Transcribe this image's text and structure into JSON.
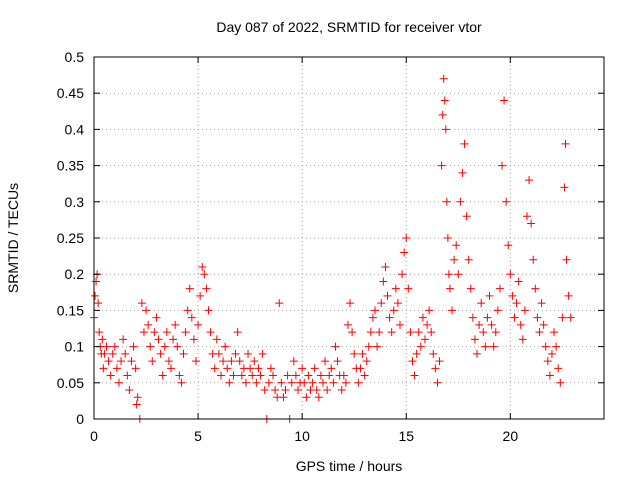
{
  "chart_data": {
    "type": "scatter",
    "title": "Day 087 of 2022, SRMTID for receiver vtor",
    "xlabel": "GPS time / hours",
    "ylabel": "SRMTID / TECUs",
    "xlim": [
      0,
      24.5
    ],
    "ylim": [
      0,
      0.5
    ],
    "xticks": [
      0,
      5,
      10,
      15,
      20
    ],
    "yticks": [
      0,
      0.05,
      0.1,
      0.15,
      0.2,
      0.25,
      0.3,
      0.35,
      0.4,
      0.45,
      0.5
    ],
    "xtick_labels": [
      "0",
      "5",
      "10",
      "15",
      "20"
    ],
    "ytick_labels": [
      "0",
      "0.05",
      "0.1",
      "0.15",
      "0.2",
      "0.25",
      "0.3",
      "0.35",
      "0.4",
      "0.45",
      "0.5"
    ],
    "grid": true,
    "marker": "plus",
    "color": "#ff0000",
    "series": [
      {
        "name": "SRMTID",
        "points": [
          [
            0.0,
            0.14
          ],
          [
            0.05,
            0.17
          ],
          [
            0.1,
            0.19
          ],
          [
            0.15,
            0.2
          ],
          [
            0.2,
            0.16
          ],
          [
            0.25,
            0.12
          ],
          [
            0.3,
            0.1
          ],
          [
            0.35,
            0.09
          ],
          [
            0.4,
            0.11
          ],
          [
            0.45,
            0.07
          ],
          [
            0.5,
            0.09
          ],
          [
            0.6,
            0.1
          ],
          [
            0.7,
            0.08
          ],
          [
            0.8,
            0.06
          ],
          [
            0.9,
            0.09
          ],
          [
            1.0,
            0.1
          ],
          [
            1.1,
            0.07
          ],
          [
            1.2,
            0.05
          ],
          [
            1.3,
            0.08
          ],
          [
            1.4,
            0.11
          ],
          [
            1.5,
            0.09
          ],
          [
            1.6,
            0.06
          ],
          [
            1.7,
            0.04
          ],
          [
            1.8,
            0.08
          ],
          [
            1.9,
            0.1
          ],
          [
            2.0,
            0.07
          ],
          [
            2.05,
            0.02
          ],
          [
            2.1,
            0.03
          ],
          [
            2.2,
            0.0
          ],
          [
            2.3,
            0.16
          ],
          [
            2.4,
            0.12
          ],
          [
            2.5,
            0.15
          ],
          [
            2.6,
            0.13
          ],
          [
            2.7,
            0.1
          ],
          [
            2.8,
            0.08
          ],
          [
            2.9,
            0.12
          ],
          [
            3.0,
            0.14
          ],
          [
            3.1,
            0.11
          ],
          [
            3.2,
            0.09
          ],
          [
            3.3,
            0.06
          ],
          [
            3.4,
            0.1
          ],
          [
            3.5,
            0.12
          ],
          [
            3.6,
            0.08
          ],
          [
            3.7,
            0.07
          ],
          [
            3.8,
            0.11
          ],
          [
            3.9,
            0.13
          ],
          [
            4.0,
            0.1
          ],
          [
            4.1,
            0.06
          ],
          [
            4.2,
            0.05
          ],
          [
            4.3,
            0.09
          ],
          [
            4.4,
            0.12
          ],
          [
            4.5,
            0.15
          ],
          [
            4.6,
            0.18
          ],
          [
            4.7,
            0.14
          ],
          [
            4.8,
            0.11
          ],
          [
            4.9,
            0.08
          ],
          [
            5.0,
            0.13
          ],
          [
            5.1,
            0.17
          ],
          [
            5.2,
            0.21
          ],
          [
            5.3,
            0.2
          ],
          [
            5.4,
            0.18
          ],
          [
            5.5,
            0.15
          ],
          [
            5.6,
            0.12
          ],
          [
            5.7,
            0.09
          ],
          [
            5.8,
            0.07
          ],
          [
            5.9,
            0.11
          ],
          [
            6.0,
            0.09
          ],
          [
            6.1,
            0.06
          ],
          [
            6.2,
            0.08
          ],
          [
            6.3,
            0.1
          ],
          [
            6.4,
            0.07
          ],
          [
            6.5,
            0.05
          ],
          [
            6.6,
            0.08
          ],
          [
            6.7,
            0.06
          ],
          [
            6.8,
            0.09
          ],
          [
            6.9,
            0.12
          ],
          [
            7.0,
            0.08
          ],
          [
            7.1,
            0.06
          ],
          [
            7.2,
            0.07
          ],
          [
            7.3,
            0.05
          ],
          [
            7.4,
            0.09
          ],
          [
            7.5,
            0.07
          ],
          [
            7.6,
            0.06
          ],
          [
            7.7,
            0.08
          ],
          [
            7.8,
            0.05
          ],
          [
            7.9,
            0.07
          ],
          [
            8.0,
            0.06
          ],
          [
            8.1,
            0.09
          ],
          [
            8.2,
            0.04
          ],
          [
            8.3,
            0.0
          ],
          [
            8.4,
            0.05
          ],
          [
            8.5,
            0.07
          ],
          [
            8.6,
            0.06
          ],
          [
            8.7,
            0.04
          ],
          [
            8.8,
            0.03
          ],
          [
            8.9,
            0.16
          ],
          [
            9.0,
            0.05
          ],
          [
            9.1,
            0.03
          ],
          [
            9.2,
            0.04
          ],
          [
            9.3,
            0.06
          ],
          [
            9.4,
            0.0
          ],
          [
            9.5,
            0.05
          ],
          [
            9.6,
            0.08
          ],
          [
            9.7,
            0.06
          ],
          [
            9.8,
            0.04
          ],
          [
            9.9,
            0.05
          ],
          [
            10.0,
            0.07
          ],
          [
            10.1,
            0.05
          ],
          [
            10.2,
            0.03
          ],
          [
            10.3,
            0.06
          ],
          [
            10.4,
            0.04
          ],
          [
            10.5,
            0.05
          ],
          [
            10.6,
            0.07
          ],
          [
            10.7,
            0.04
          ],
          [
            10.8,
            0.03
          ],
          [
            10.9,
            0.06
          ],
          [
            11.0,
            0.05
          ],
          [
            11.1,
            0.08
          ],
          [
            11.2,
            0.04
          ],
          [
            11.3,
            0.06
          ],
          [
            11.4,
            0.07
          ],
          [
            11.5,
            0.05
          ],
          [
            11.6,
            0.1
          ],
          [
            11.7,
            0.08
          ],
          [
            11.8,
            0.06
          ],
          [
            11.9,
            0.04
          ],
          [
            12.0,
            0.06
          ],
          [
            12.1,
            0.05
          ],
          [
            12.2,
            0.13
          ],
          [
            12.3,
            0.16
          ],
          [
            12.4,
            0.12
          ],
          [
            12.5,
            0.09
          ],
          [
            12.6,
            0.07
          ],
          [
            12.7,
            0.05
          ],
          [
            12.8,
            0.07
          ],
          [
            12.9,
            0.09
          ],
          [
            13.0,
            0.06
          ],
          [
            13.1,
            0.08
          ],
          [
            13.2,
            0.1
          ],
          [
            13.3,
            0.12
          ],
          [
            13.4,
            0.14
          ],
          [
            13.5,
            0.15
          ],
          [
            13.6,
            0.1
          ],
          [
            13.7,
            0.12
          ],
          [
            13.8,
            0.16
          ],
          [
            13.9,
            0.19
          ],
          [
            14.0,
            0.21
          ],
          [
            14.1,
            0.17
          ],
          [
            14.2,
            0.14
          ],
          [
            14.3,
            0.12
          ],
          [
            14.4,
            0.15
          ],
          [
            14.5,
            0.18
          ],
          [
            14.6,
            0.16
          ],
          [
            14.7,
            0.13
          ],
          [
            14.8,
            0.2
          ],
          [
            14.9,
            0.23
          ],
          [
            15.0,
            0.25
          ],
          [
            15.1,
            0.18
          ],
          [
            15.2,
            0.12
          ],
          [
            15.3,
            0.08
          ],
          [
            15.4,
            0.06
          ],
          [
            15.5,
            0.09
          ],
          [
            15.6,
            0.12
          ],
          [
            15.7,
            0.1
          ],
          [
            15.8,
            0.14
          ],
          [
            15.9,
            0.11
          ],
          [
            16.0,
            0.13
          ],
          [
            16.1,
            0.15
          ],
          [
            16.2,
            0.12
          ],
          [
            16.3,
            0.09
          ],
          [
            16.4,
            0.07
          ],
          [
            16.5,
            0.05
          ],
          [
            16.6,
            0.08
          ],
          [
            16.7,
            0.35
          ],
          [
            16.75,
            0.42
          ],
          [
            16.8,
            0.47
          ],
          [
            16.85,
            0.44
          ],
          [
            16.9,
            0.4
          ],
          [
            16.95,
            0.3
          ],
          [
            17.0,
            0.25
          ],
          [
            17.05,
            0.2
          ],
          [
            17.1,
            0.18
          ],
          [
            17.2,
            0.15
          ],
          [
            17.3,
            0.22
          ],
          [
            17.4,
            0.24
          ],
          [
            17.5,
            0.2
          ],
          [
            17.6,
            0.3
          ],
          [
            17.7,
            0.34
          ],
          [
            17.8,
            0.38
          ],
          [
            17.9,
            0.28
          ],
          [
            18.0,
            0.22
          ],
          [
            18.1,
            0.18
          ],
          [
            18.2,
            0.14
          ],
          [
            18.3,
            0.11
          ],
          [
            18.4,
            0.09
          ],
          [
            18.5,
            0.13
          ],
          [
            18.6,
            0.16
          ],
          [
            18.7,
            0.12
          ],
          [
            18.8,
            0.1
          ],
          [
            18.9,
            0.14
          ],
          [
            19.0,
            0.17
          ],
          [
            19.1,
            0.13
          ],
          [
            19.2,
            0.1
          ],
          [
            19.3,
            0.12
          ],
          [
            19.4,
            0.15
          ],
          [
            19.5,
            0.18
          ],
          [
            19.6,
            0.35
          ],
          [
            19.7,
            0.44
          ],
          [
            19.8,
            0.3
          ],
          [
            19.9,
            0.24
          ],
          [
            20.0,
            0.2
          ],
          [
            20.1,
            0.17
          ],
          [
            20.2,
            0.14
          ],
          [
            20.3,
            0.16
          ],
          [
            20.4,
            0.19
          ],
          [
            20.5,
            0.13
          ],
          [
            20.6,
            0.11
          ],
          [
            20.7,
            0.15
          ],
          [
            20.8,
            0.28
          ],
          [
            20.9,
            0.33
          ],
          [
            21.0,
            0.27
          ],
          [
            21.1,
            0.22
          ],
          [
            21.2,
            0.18
          ],
          [
            21.3,
            0.14
          ],
          [
            21.4,
            0.12
          ],
          [
            21.5,
            0.16
          ],
          [
            21.6,
            0.13
          ],
          [
            21.7,
            0.1
          ],
          [
            21.8,
            0.08
          ],
          [
            21.9,
            0.06
          ],
          [
            22.0,
            0.09
          ],
          [
            22.1,
            0.12
          ],
          [
            22.2,
            0.1
          ],
          [
            22.3,
            0.07
          ],
          [
            22.4,
            0.05
          ],
          [
            22.5,
            0.14
          ],
          [
            22.6,
            0.32
          ],
          [
            22.65,
            0.38
          ],
          [
            22.7,
            0.22
          ],
          [
            22.8,
            0.17
          ],
          [
            22.9,
            0.14
          ]
        ]
      }
    ]
  }
}
